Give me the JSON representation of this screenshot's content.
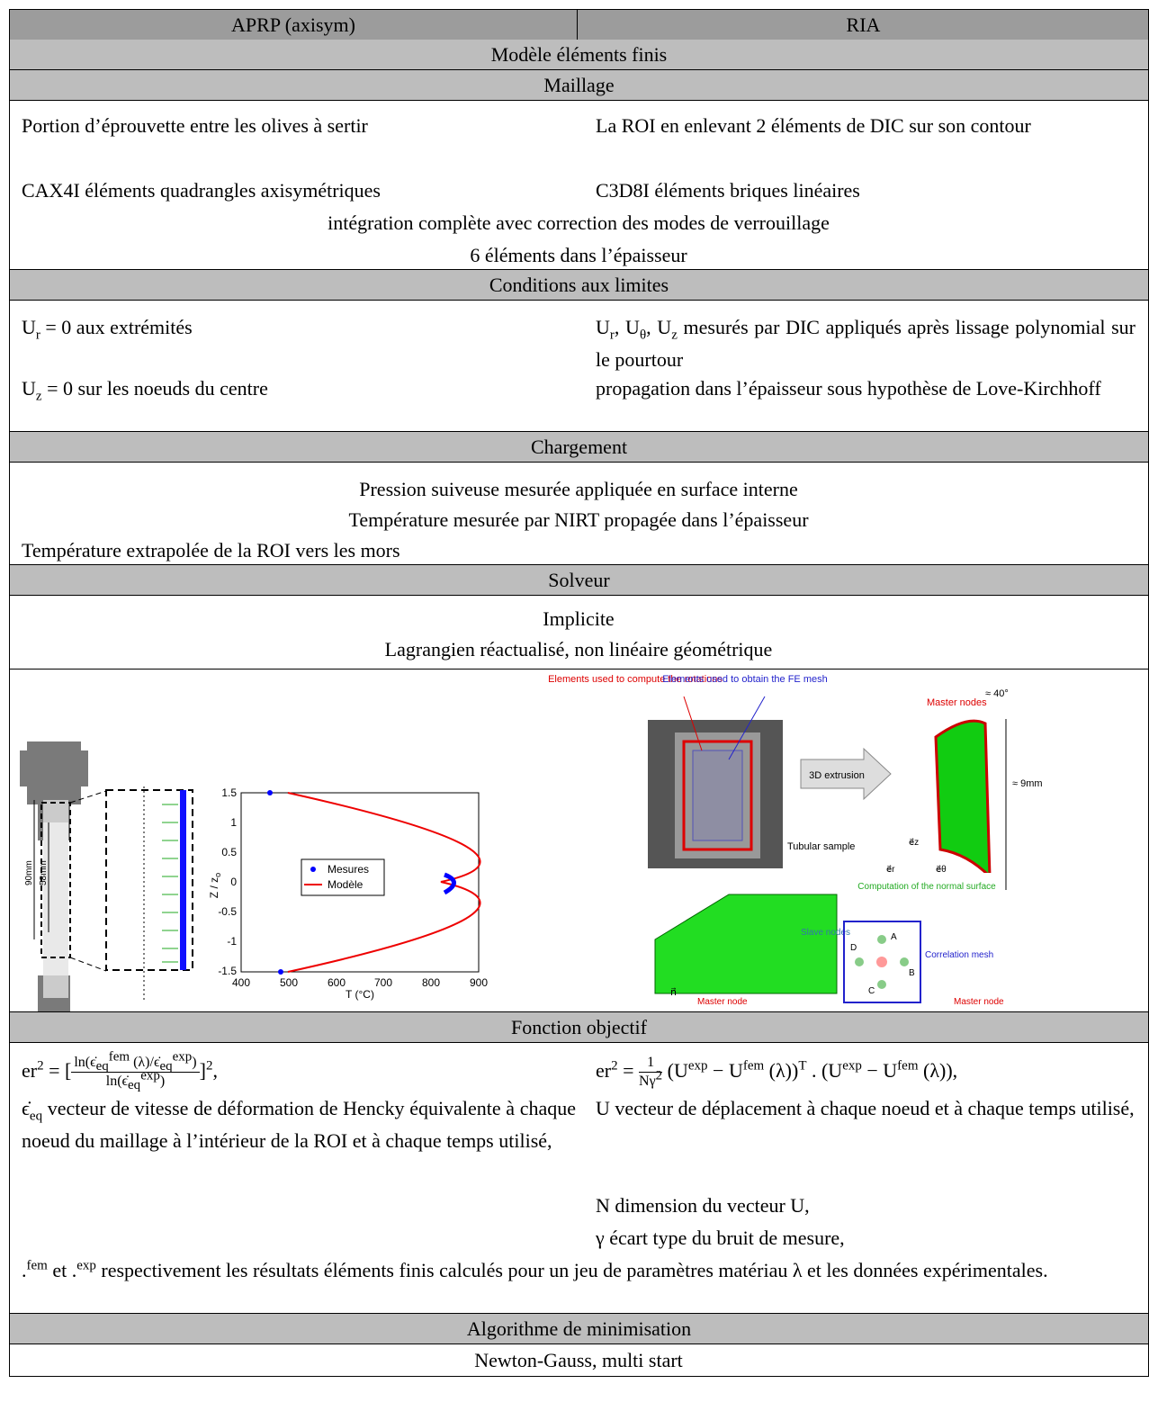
{
  "header": {
    "left": "APRP (axisym)",
    "right": "RIA"
  },
  "model_title": "Modèle éléments finis",
  "mesh": {
    "title": "Maillage",
    "left": [
      "Portion d’éprouvette entre les olives à sertir",
      "CAX4I éléments quadrangles axisymétriques"
    ],
    "right": [
      "La ROI en enlevant 2 éléments de DIC sur son contour",
      "C3D8I éléments briques linéaires"
    ],
    "common": [
      "intégration complète avec correction des modes de verrouillage",
      "6 éléments dans l’épaisseur"
    ]
  },
  "boundary": {
    "title": "Conditions aux limites",
    "left1": [
      "U",
      "r",
      " = 0 aux extrémités"
    ],
    "left2": [
      "U",
      "z",
      " = 0 sur les noeuds du centre"
    ],
    "right1": [
      "U",
      "r",
      ", U",
      "θ",
      ", U",
      "z",
      " mesurés par DIC appliqués après lissage polynomial sur le pourtour"
    ],
    "right2": "propagation dans l’épaisseur sous hypothèse de Love-Kirchhoff"
  },
  "loading": {
    "title": "Chargement",
    "lines": [
      "Pression suiveuse mesurée appliquée en surface interne",
      "Température mesurée par NIRT propagée dans l’épaisseur",
      "Température extrapolée de la ROI vers les mors"
    ]
  },
  "solver": {
    "title": "Solveur",
    "lines": [
      "Implicite",
      "Lagrangien réactualisé, non linéaire géométrique"
    ]
  },
  "figures": {
    "specimen": [
      "90mm",
      "58mm"
    ],
    "plot": {
      "yticks": [
        "1.5",
        "1",
        "0.5",
        "0",
        "-0.5",
        "-1",
        "-1.5"
      ],
      "xticks": [
        "400",
        "500",
        "600",
        "700",
        "800",
        "900"
      ],
      "xlabel": "T (°C)",
      "ylabel": "Z / z",
      "ylabel_sub": "o",
      "legend": [
        "Mesures",
        "Modèle"
      ]
    },
    "ria": {
      "red_label": "Elements used to compute the rotations",
      "blue_label": "Elements used to obtain the FE mesh",
      "sample": "Tubular sample",
      "extrusion": "3D extrusion",
      "master_nodes": "Master nodes",
      "angle": "≈ 40°",
      "height": "≈ 9mm",
      "slave": "Slave nodes",
      "normal": "Computation of the normal surface",
      "corr": "Correlation mesh",
      "master_node": "Master node",
      "n": "n⃗",
      "abcd": [
        "A",
        "B",
        "C",
        "D"
      ],
      "axes": [
        "e⃗z",
        "e⃗r",
        "e⃗θ"
      ]
    }
  },
  "objective": {
    "title": "Fonction objectif",
    "left_formula": {
      "lhs": "er",
      "lhs_pow": "2",
      "eq": " = ",
      "num": [
        "ln(ϵ̇",
        "eq",
        "fem",
        " (λ)/ϵ̇",
        "eq",
        "exp",
        ")"
      ],
      "den": [
        "ln(ϵ̇",
        "eq",
        "exp",
        ")"
      ],
      "pow": "2",
      "end": ","
    },
    "right_formula": {
      "lhs": "er",
      "lhs_pow": "2",
      "eq": " = ",
      "num": "1",
      "den": "Nγ",
      "den_pow": "2",
      "body": [
        "(U",
        "exp",
        " − U",
        "fem",
        " (λ))",
        "T",
        " . (U",
        "exp",
        " − U",
        "fem",
        " (λ)),"
      ]
    },
    "left_text": [
      "ϵ̇",
      "eq",
      " vecteur de vitesse de déformation de Hencky équivalente à chaque noeud du maillage à l’intérieur de la ROI et à chaque temps utilisé,"
    ],
    "right_lines": [
      "U vecteur de déplacement à chaque noeud et à chaque temps utilisé,",
      "N dimension du vecteur U,",
      "γ écart type du bruit de mesure,"
    ],
    "bottom": [
      ".",
      "fem",
      " et .",
      "exp",
      " respectivement les résultats éléments finis calculés pour un jeu de paramètres matériau λ et les données expérimentales."
    ]
  },
  "algorithm": {
    "title": "Algorithme de minimisation",
    "line": "Newton-Gauss, multi start"
  }
}
